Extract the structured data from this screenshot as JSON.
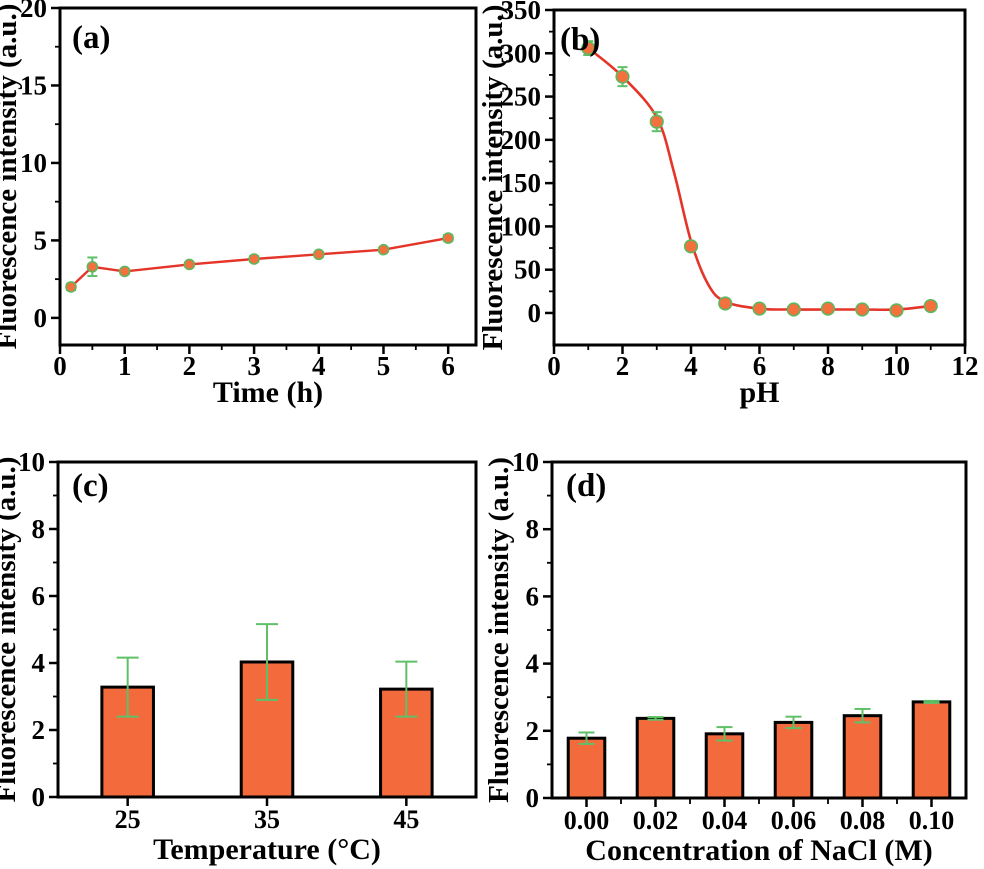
{
  "figure": {
    "background": "#ffffff",
    "colors": {
      "curve_red": "#e53428",
      "marker_fill": "#f3713f",
      "marker_edge": "#5db75f",
      "error_green": "#5fc068",
      "bar_fill": "#f36a3d",
      "bar_edge": "#000000",
      "axis_black": "#000000"
    }
  },
  "chart_data": [
    {
      "id": "panel-a",
      "type": "line",
      "panel_label": "(a)",
      "title": "",
      "xlabel": "Time (h)",
      "ylabel": "Fluorescence intensity (a.u.)",
      "xlim": [
        0,
        6.43
      ],
      "ylim": [
        -1.75,
        20
      ],
      "xticks": [
        0,
        1,
        2,
        3,
        4,
        5,
        6
      ],
      "x_minor_step": 0.5,
      "yticks": [
        0,
        5,
        10,
        15,
        20
      ],
      "y_minor_step": 2.5,
      "grid": false,
      "points": {
        "x": [
          0.17,
          0.5,
          1,
          2,
          3,
          4,
          5,
          6
        ],
        "y": [
          2.0,
          3.3,
          3.0,
          3.45,
          3.8,
          4.1,
          4.4,
          5.15
        ],
        "yerr": [
          0.2,
          0.6,
          0.15,
          0.15,
          0.18,
          0.15,
          0.15,
          0.2
        ]
      },
      "connect": "segments"
    },
    {
      "id": "panel-b",
      "type": "line",
      "panel_label": "(b)",
      "title": "",
      "xlabel": "pH",
      "ylabel": "Fluorescence intensity (a.u.)",
      "xlim": [
        0,
        12
      ],
      "ylim": [
        -37,
        350
      ],
      "xticks": [
        0,
        2,
        4,
        6,
        8,
        10,
        12
      ],
      "x_minor_step": 1,
      "yticks": [
        0,
        50,
        100,
        150,
        200,
        250,
        300,
        350
      ],
      "y_minor_step": 25,
      "grid": false,
      "points": {
        "x": [
          1,
          2,
          3,
          4,
          5,
          6,
          7,
          8,
          9,
          10,
          11
        ],
        "y": [
          306,
          273,
          221,
          77,
          11,
          5,
          4,
          5,
          4,
          3,
          8
        ],
        "yerr": [
          8,
          11,
          11,
          5,
          3,
          2,
          2,
          2,
          2,
          2,
          2
        ]
      },
      "connect": "fit",
      "fit_curve": {
        "x": [
          1,
          2,
          3,
          3.5,
          4,
          4.5,
          5,
          6,
          7,
          8,
          9,
          10,
          11
        ],
        "y": [
          306,
          273,
          226,
          163,
          83,
          33,
          13,
          5,
          4,
          4,
          4,
          4,
          8
        ]
      }
    },
    {
      "id": "panel-c",
      "type": "bar",
      "panel_label": "(c)",
      "title": "",
      "xlabel": "Temperature (°C)",
      "ylabel": "Fluorescence intensity (a.u.)",
      "categories": [
        "25",
        "35",
        "45"
      ],
      "values": [
        3.28,
        4.03,
        3.22
      ],
      "yerr": [
        0.88,
        1.13,
        0.82
      ],
      "ylim": [
        0,
        10
      ],
      "yticks": [
        0,
        2,
        4,
        6,
        8,
        10
      ],
      "y_minor_step": 1,
      "grid": false,
      "bar_frac": 0.37,
      "boundary_minor": false
    },
    {
      "id": "panel-d",
      "type": "bar",
      "panel_label": "(d)",
      "title": "",
      "xlabel": "Concentration of NaCl (M)",
      "ylabel": "Fluorescence intensity (a.u.)",
      "categories": [
        "0.00",
        "0.02",
        "0.04",
        "0.06",
        "0.08",
        "0.10"
      ],
      "values": [
        1.78,
        2.37,
        1.91,
        2.25,
        2.45,
        2.86
      ],
      "yerr": [
        0.17,
        0.04,
        0.2,
        0.17,
        0.2,
        0.03
      ],
      "ylim": [
        0,
        10
      ],
      "yticks": [
        0,
        2,
        4,
        6,
        8,
        10
      ],
      "y_minor_step": 1,
      "grid": false,
      "bar_frac": 0.53,
      "boundary_minor": true
    }
  ]
}
